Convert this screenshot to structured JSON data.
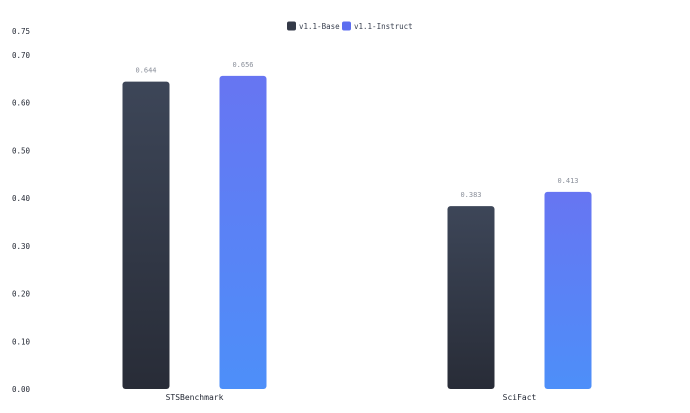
{
  "chart_data": {
    "type": "bar",
    "title": "",
    "xlabel": "",
    "ylabel": "",
    "categories": [
      "STSBenchmark",
      "SciFact"
    ],
    "series": [
      {
        "name": "v1.1-Base",
        "values": [
          0.644,
          0.383
        ],
        "value_labels": [
          "0.644",
          "0.383"
        ],
        "color_top": "#3d4658",
        "color_bottom": "#282c37",
        "legend_color": "#343a48"
      },
      {
        "name": "v1.1-Instruct",
        "values": [
          0.656,
          0.413
        ],
        "value_labels": [
          "0.656",
          "0.413"
        ],
        "color_top": "#6775f2",
        "color_bottom": "#4d8ff9",
        "legend_color": "#5c6ef0"
      }
    ],
    "ylim": [
      0,
      0.75
    ],
    "yticks": [
      0.0,
      0.1,
      0.2,
      0.3,
      0.4,
      0.5,
      0.6,
      0.7,
      0.75
    ],
    "ytick_labels": [
      "0.00",
      "0.10",
      "0.20",
      "0.30",
      "0.40",
      "0.50",
      "0.60",
      "0.70",
      "0.75"
    ],
    "grid": false,
    "legend_position": "top-center"
  }
}
